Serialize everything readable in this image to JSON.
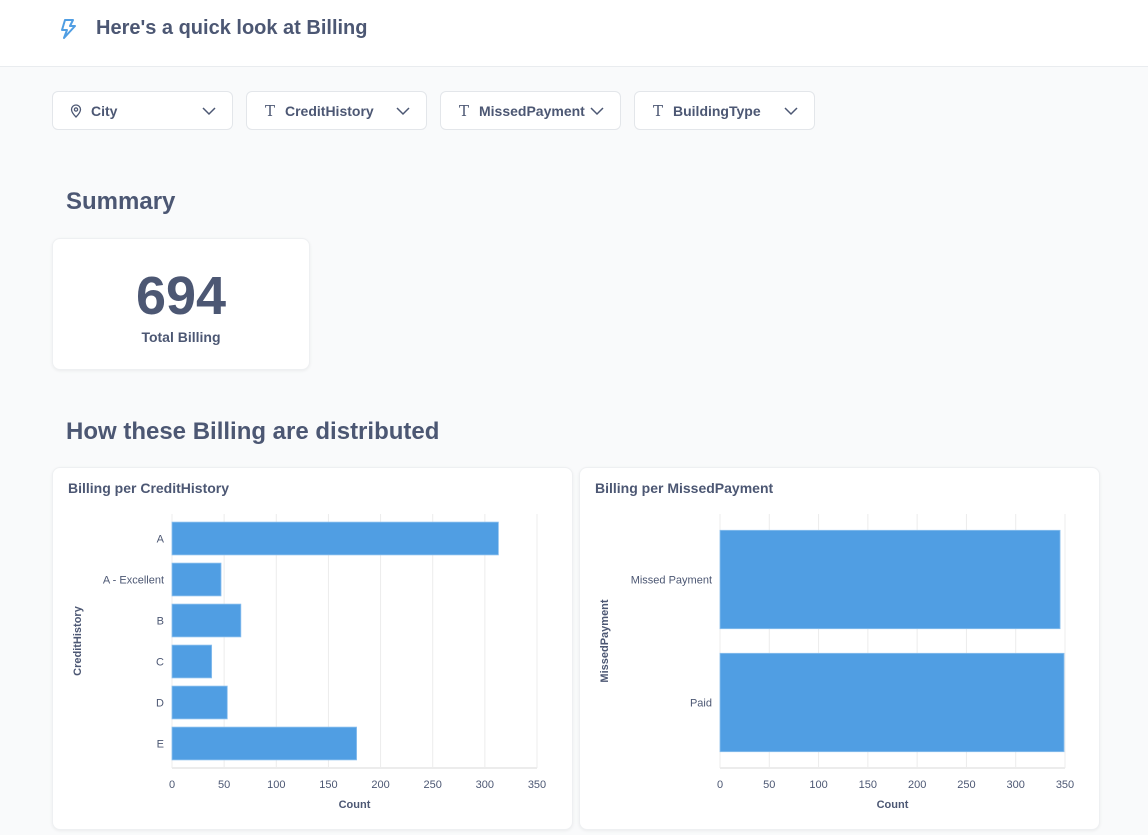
{
  "header": {
    "title": "Here's a quick look at Billing",
    "icon": "bolt-icon",
    "accent_color": "#509ee3"
  },
  "filters": [
    {
      "label": "City",
      "icon": "location-pin-icon"
    },
    {
      "label": "CreditHistory",
      "icon": "text-type-icon"
    },
    {
      "label": "MissedPayment",
      "icon": "text-type-icon"
    },
    {
      "label": "BuildingType",
      "icon": "text-type-icon"
    }
  ],
  "summary": {
    "heading": "Summary",
    "kpi_value": "694",
    "kpi_label": "Total Billing"
  },
  "distribution": {
    "heading": "How these Billing are distributed"
  },
  "chart_data": [
    {
      "type": "bar",
      "orientation": "horizontal",
      "title": "Billing per CreditHistory",
      "categories": [
        "A",
        "A - Excellent",
        "B",
        "C",
        "D",
        "E"
      ],
      "values": [
        313,
        47,
        66,
        38,
        53,
        177
      ],
      "xlabel": "Count",
      "ylabel": "CreditHistory",
      "xlim": [
        0,
        350
      ],
      "xticks": [
        "0",
        "50",
        "100",
        "150",
        "200",
        "250",
        "300",
        "350"
      ],
      "grid": true,
      "bar_color": "#509ee3"
    },
    {
      "type": "bar",
      "orientation": "horizontal",
      "title": "Billing per MissedPayment",
      "categories": [
        "Missed Payment",
        "Paid"
      ],
      "values": [
        345,
        349
      ],
      "xlabel": "Count",
      "ylabel": "MissedPayment",
      "xlim": [
        0,
        350
      ],
      "xticks": [
        "0",
        "50",
        "100",
        "150",
        "200",
        "250",
        "300",
        "350"
      ],
      "grid": true,
      "bar_color": "#509ee3"
    }
  ]
}
